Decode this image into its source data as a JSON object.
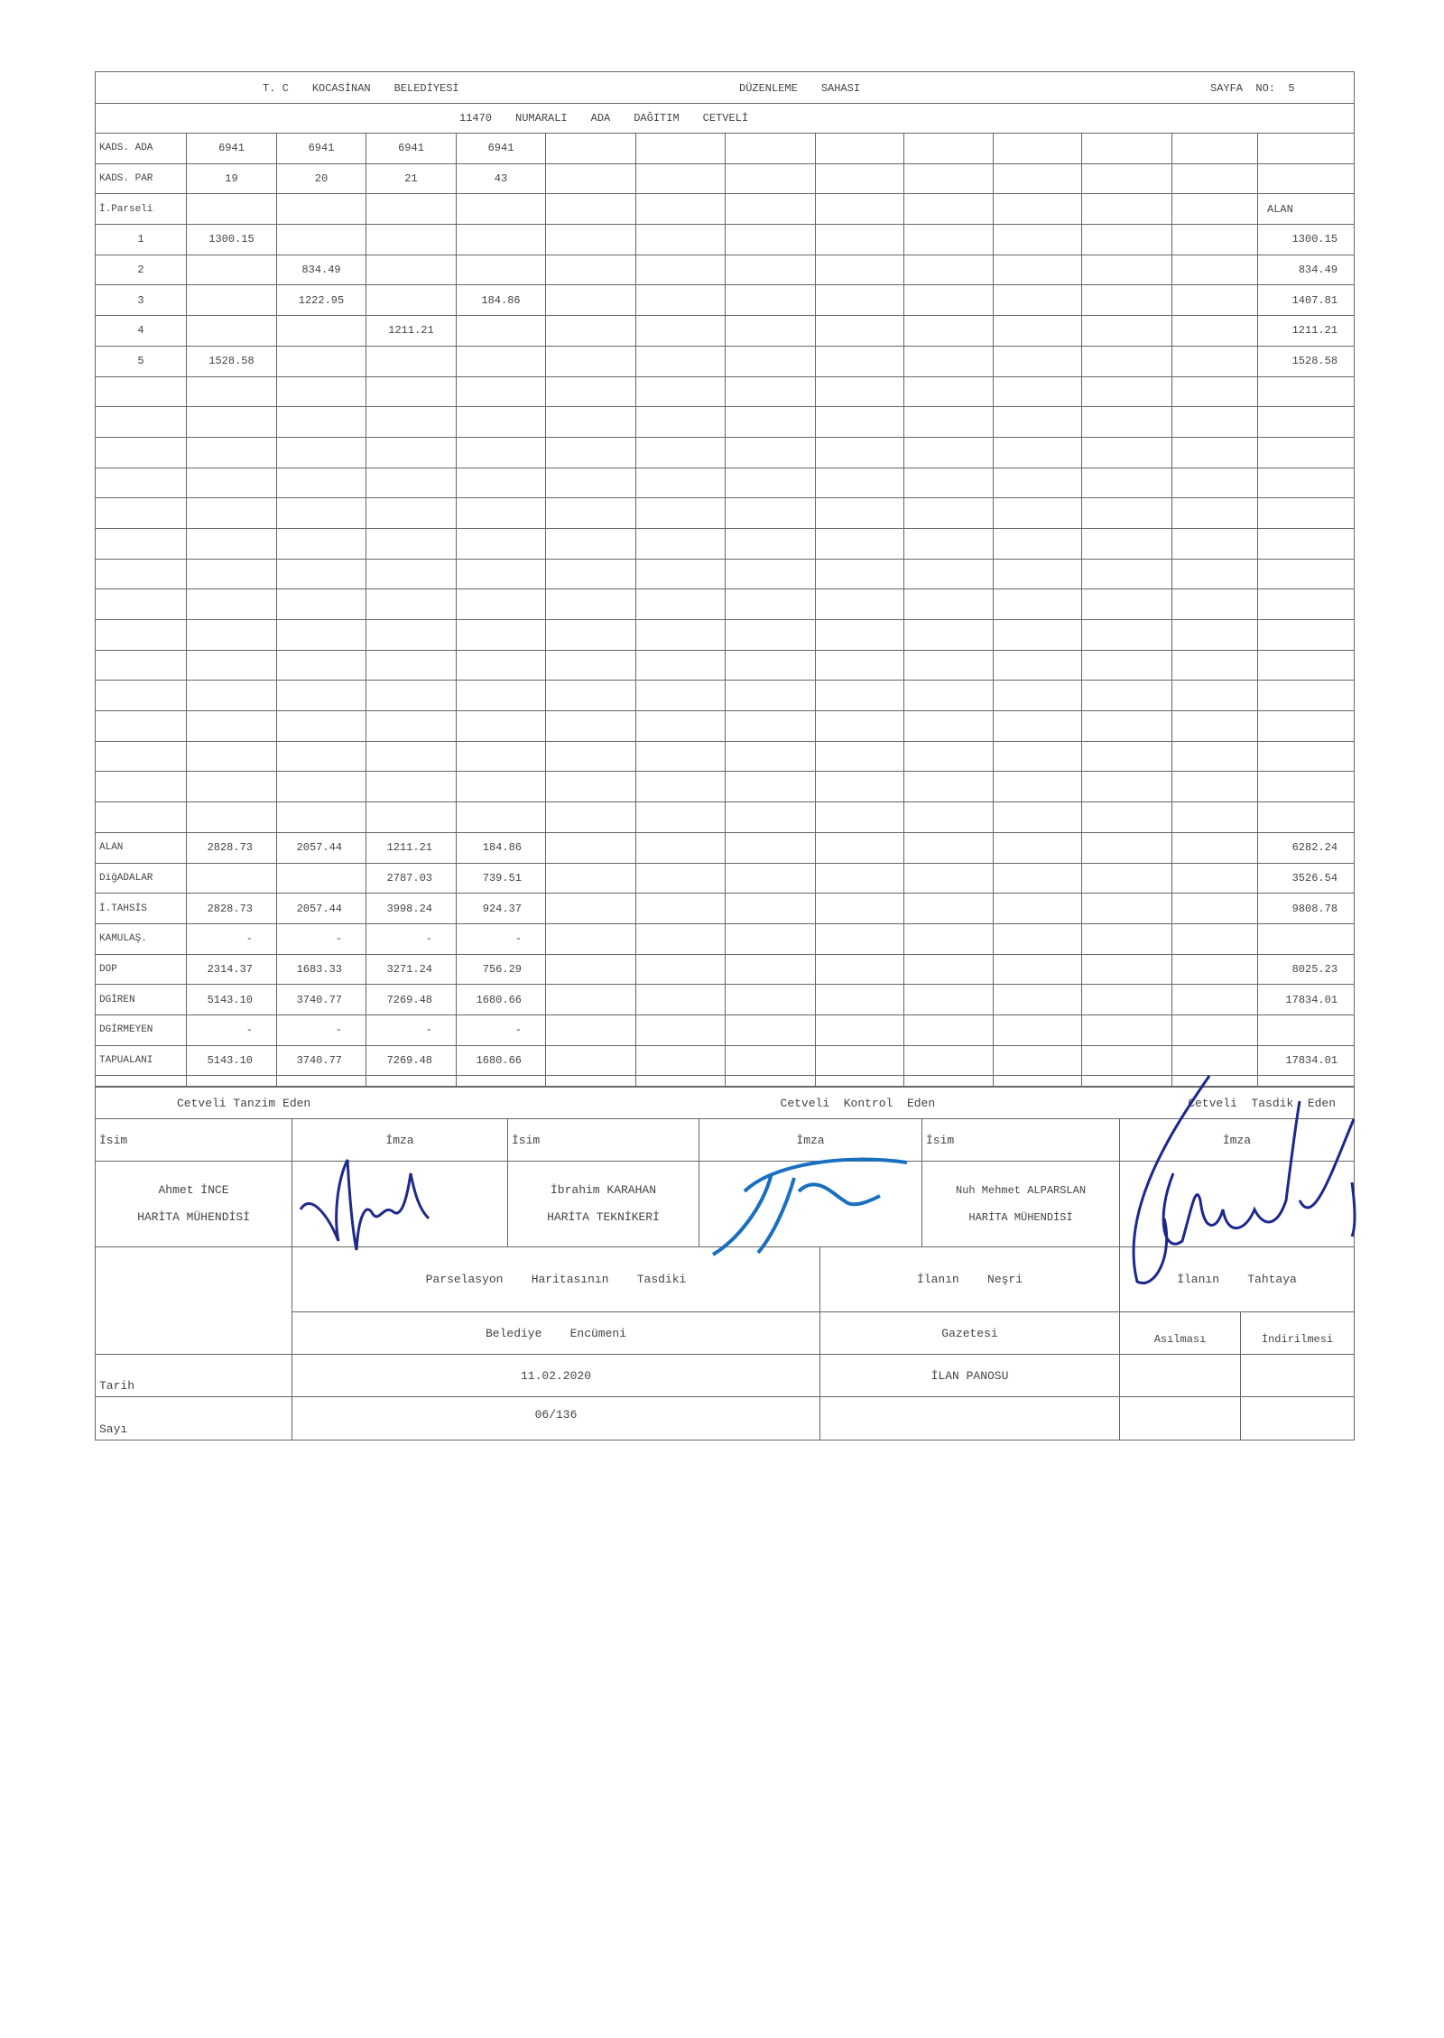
{
  "header": {
    "line1": [
      "T. C",
      "KOCASİNAN",
      "BELEDİYESİ",
      "DÜZENLEME",
      "SAHASI"
    ],
    "page_no": "SAYFA  NO:  5",
    "line2": [
      "11470",
      "NUMARALI",
      "ADA",
      "DAĞITIM",
      "CETVELİ"
    ]
  },
  "top_rows": [
    {
      "label": "KADS.  ADA",
      "cells": [
        "6941",
        "6941",
        "6941",
        "6941"
      ],
      "alan": ""
    },
    {
      "label": "KADS.  PAR",
      "cells": [
        "19",
        "20",
        "21",
        "43"
      ],
      "alan": ""
    },
    {
      "label": "İ.Parseli",
      "cells": [
        "",
        "",
        "",
        ""
      ],
      "alan": "ALAN"
    }
  ],
  "parcel_rows": [
    {
      "label": "1",
      "cells": [
        "1300.15",
        "",
        "",
        ""
      ],
      "alan": "1300.15"
    },
    {
      "label": "2",
      "cells": [
        "",
        "834.49",
        "",
        ""
      ],
      "alan": "834.49"
    },
    {
      "label": "3",
      "cells": [
        "",
        "1222.95",
        "",
        "184.86"
      ],
      "alan": "1407.81"
    },
    {
      "label": "4",
      "cells": [
        "",
        "",
        "1211.21",
        ""
      ],
      "alan": "1211.21"
    },
    {
      "label": "5",
      "cells": [
        "1528.58",
        "",
        "",
        ""
      ],
      "alan": "1528.58"
    }
  ],
  "summary_rows": [
    {
      "label": "ALAN",
      "cells": [
        "2828.73",
        "2057.44",
        "1211.21",
        "184.86"
      ],
      "alan": "6282.24"
    },
    {
      "label": "DiğADALAR",
      "cells": [
        "",
        "",
        "2787.03",
        "739.51"
      ],
      "alan": "3526.54"
    },
    {
      "label": "İ.TAHSİS",
      "cells": [
        "2828.73",
        "2057.44",
        "3998.24",
        "924.37"
      ],
      "alan": "9808.78"
    },
    {
      "label": "KAMULAŞ.",
      "cells": [
        "-",
        "-",
        "-",
        "-"
      ],
      "alan": ""
    },
    {
      "label": "DOP",
      "cells": [
        "2314.37",
        "1683.33",
        "3271.24",
        "756.29"
      ],
      "alan": "8025.23"
    },
    {
      "label": "DGİREN",
      "cells": [
        "5143.10",
        "3740.77",
        "7269.48",
        "1680.66"
      ],
      "alan": "17834.01"
    },
    {
      "label": "DGİRMEYEN",
      "cells": [
        "-",
        "-",
        "-",
        "-"
      ],
      "alan": ""
    },
    {
      "label": "TAPUALANI",
      "cells": [
        "5143.10",
        "3740.77",
        "7269.48",
        "1680.66"
      ],
      "alan": "17834.01"
    }
  ],
  "signatures": {
    "sections": [
      "Cetveli  Tanzim  Eden",
      "Cetveli  Kontrol  Eden",
      "Cetveli  Tasdik  Eden"
    ],
    "name_label": "İsim",
    "sign_label": "İmza",
    "people": [
      {
        "name": "Ahmet İNCE",
        "title": "HARİTA MÜHENDİSİ"
      },
      {
        "name": "İbrahim KARAHAN",
        "title": "HARİTA TEKNİKERİ"
      },
      {
        "name": "Nuh Mehmet ALPARSLAN",
        "title": "HARİTA MÜHENDİSİ"
      }
    ],
    "ink_colors": [
      "#1f2a8a",
      "#1a6fc0",
      "#1c2790"
    ]
  },
  "approval": {
    "parsel_title": "Parselasyon    Haritasının    Tasdiki",
    "ilan_nesri": "İlanın    Neşri",
    "ilan_tahtaya": "İlanın    Tahtaya",
    "belediye": "Belediye    Encümeni",
    "gazetesi": "Gazetesi",
    "asilmasi": "Asılması",
    "indirilmesi": "İndirilmesi",
    "tarih_label": "Tarih",
    "tarih_value": "11.02.2020",
    "ilan_panosu": "İLAN PANOSU",
    "sayi_label": "Sayı",
    "sayi_value": "06/136"
  }
}
